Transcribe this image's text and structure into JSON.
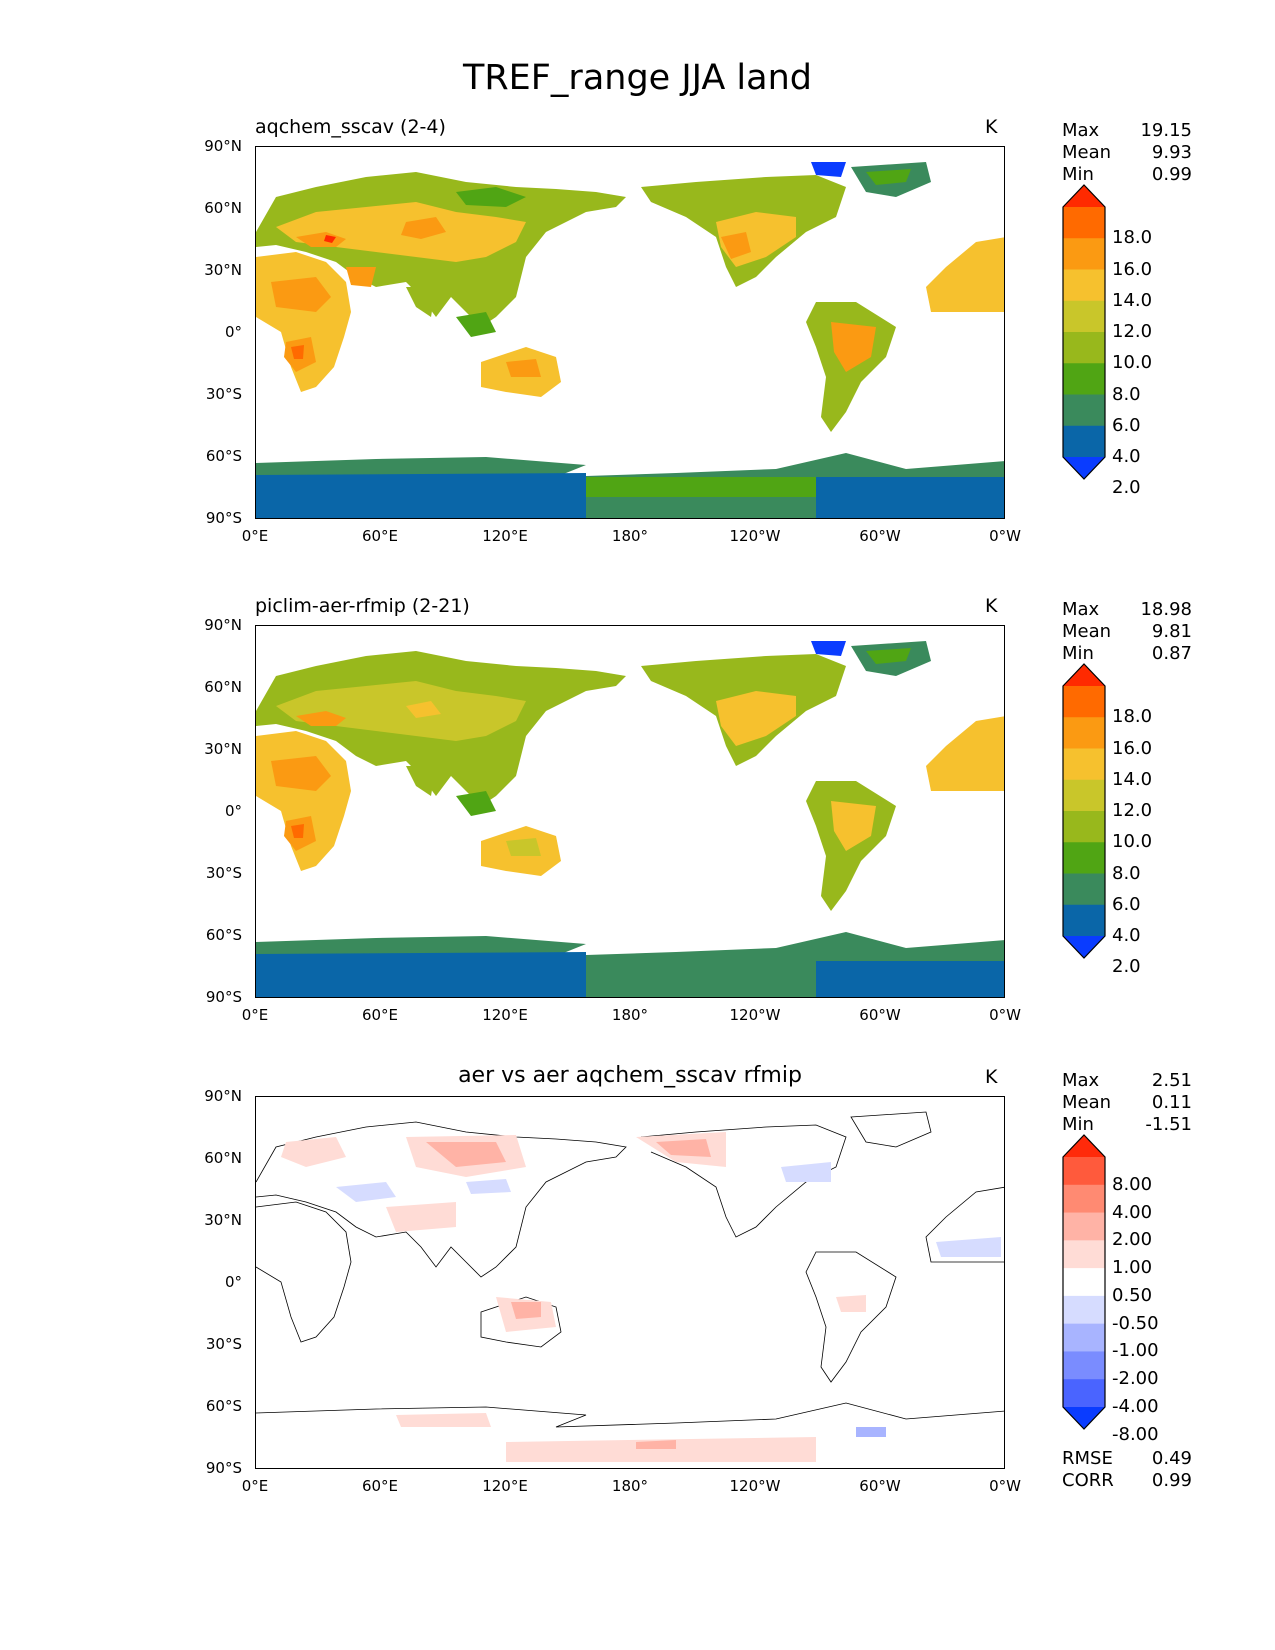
{
  "figure": {
    "title": "TREF_range JJA land",
    "lon_ticks": [
      "0°E",
      "60°E",
      "120°E",
      "180°",
      "120°W",
      "60°W",
      "0°W"
    ],
    "lat_ticks": [
      "90°N",
      "60°N",
      "30°N",
      "0°",
      "30°S",
      "60°S",
      "90°S"
    ]
  },
  "panels": [
    {
      "title": "aqchem_sscav (2-4)",
      "units": "K",
      "stats": {
        "Max": "19.15",
        "Mean": "9.93",
        "Min": "0.99"
      },
      "colorbar": {
        "labels": [
          "18.0",
          "16.0",
          "14.0",
          "12.0",
          "10.0",
          "8.0",
          "6.0",
          "4.0",
          "2.0"
        ],
        "colors": [
          "#ff2a00",
          "#ff6a00",
          "#fb9a12",
          "#f6c12e",
          "#c9c62a",
          "#98b81c",
          "#50a514",
          "#3a8a5c",
          "#0a66a8",
          "#0a3cff"
        ]
      }
    },
    {
      "title": "piclim-aer-rfmip (2-21)",
      "units": "K",
      "stats": {
        "Max": "18.98",
        "Mean": "9.81",
        "Min": "0.87"
      },
      "colorbar": {
        "labels": [
          "18.0",
          "16.0",
          "14.0",
          "12.0",
          "10.0",
          "8.0",
          "6.0",
          "4.0",
          "2.0"
        ],
        "colors": [
          "#ff2a00",
          "#ff6a00",
          "#fb9a12",
          "#f6c12e",
          "#c9c62a",
          "#98b81c",
          "#50a514",
          "#3a8a5c",
          "#0a66a8",
          "#0a3cff"
        ]
      }
    },
    {
      "title": "aer vs aer aqchem_sscav rfmip",
      "units": "K",
      "stats": {
        "Max": "2.51",
        "Mean": "0.11",
        "Min": "-1.51"
      },
      "colorbar": {
        "labels": [
          "8.00",
          "4.00",
          "2.00",
          "1.00",
          "0.50",
          "-0.50",
          "-1.00",
          "-2.00",
          "-4.00",
          "-8.00"
        ],
        "colors": [
          "#ff2a0a",
          "#ff5a3c",
          "#ff8a72",
          "#ffb3a6",
          "#ffdcd6",
          "#ffffff",
          "#d6dcff",
          "#a8b4ff",
          "#7a8cff",
          "#4a64ff",
          "#0a3cff"
        ]
      },
      "metrics": {
        "RMSE": "0.49",
        "CORR": "0.99"
      }
    }
  ]
}
